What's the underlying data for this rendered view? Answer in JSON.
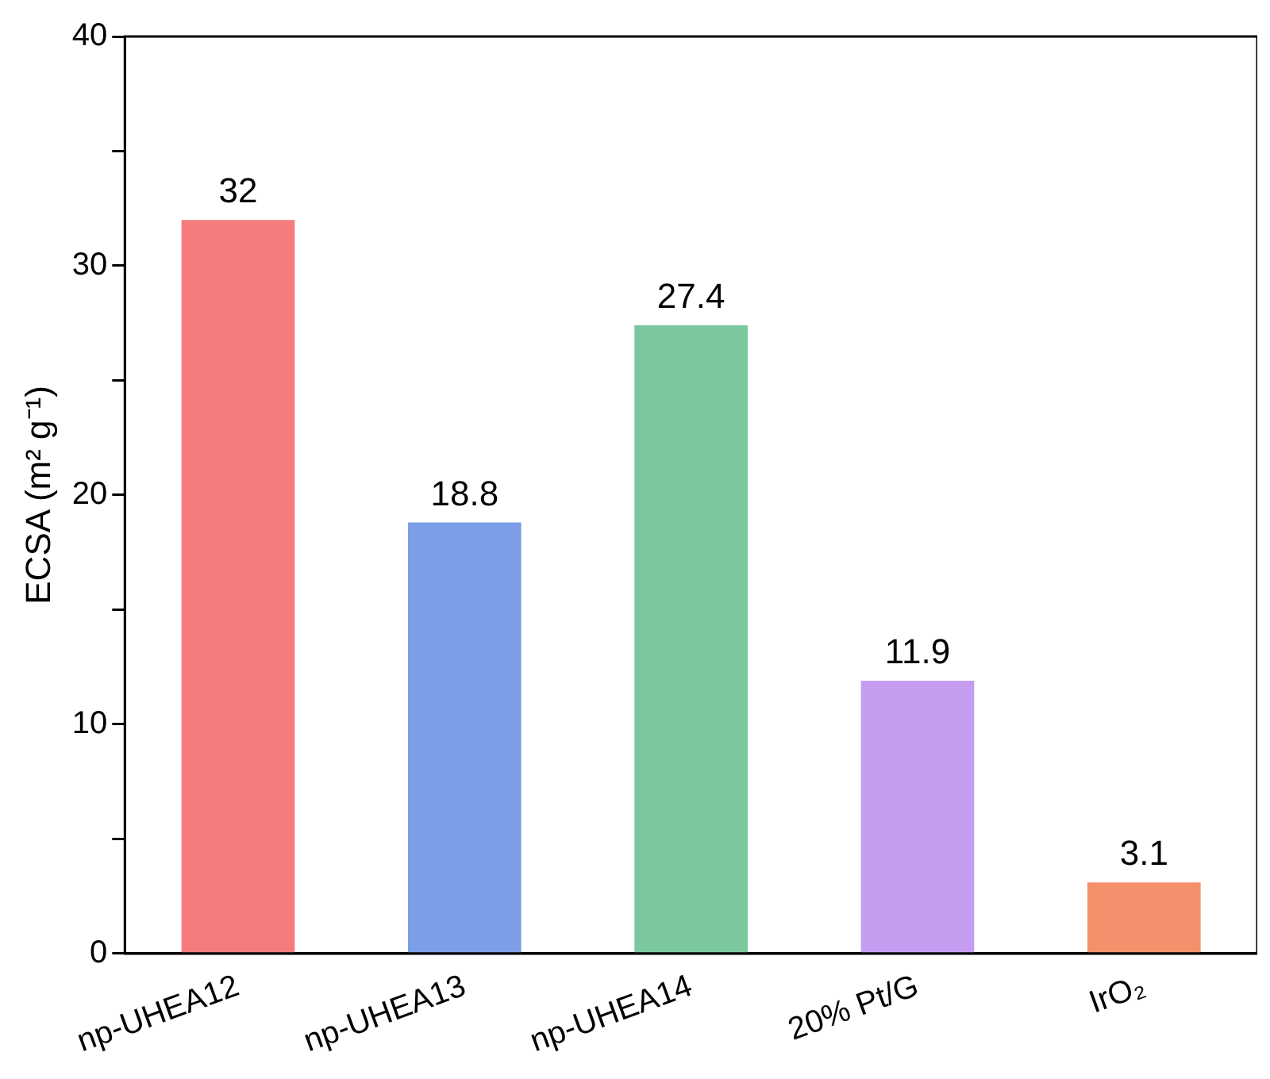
{
  "chart_data": {
    "type": "bar",
    "ylabel": "ECSA (m² g⁻¹)",
    "categories": [
      "np-UHEA12",
      "np-UHEA13",
      "np-UHEA14",
      "20% Pt/G",
      "IrO₂"
    ],
    "values": [
      32,
      18.8,
      27.4,
      11.9,
      3.1
    ],
    "colors": [
      "#f47c7c",
      "#7c9ee6",
      "#7cc89e",
      "#c49cf0",
      "#f4906c"
    ],
    "ylim": [
      0,
      40
    ],
    "yticks": [
      0,
      {
        "value": 5,
        "label": null
      },
      10,
      {
        "value": 15,
        "label": null
      },
      20,
      {
        "value": 25,
        "label": null
      },
      30,
      {
        "value": 35,
        "label": null
      },
      40
    ],
    "data_labels": true,
    "grid": false,
    "legend": false
  }
}
